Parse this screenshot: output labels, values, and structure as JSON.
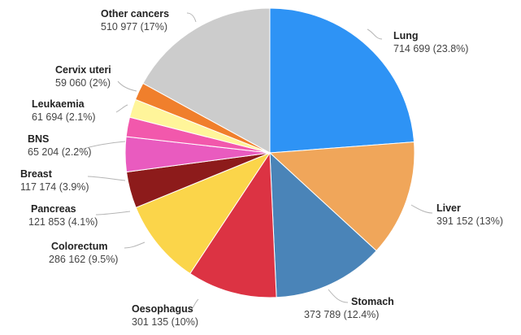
{
  "chart_data": {
    "type": "pie",
    "title": "",
    "slices": [
      {
        "name": "Lung",
        "value": 714699,
        "label": "714 699 (23.8%)",
        "color": "#2e93f5"
      },
      {
        "name": "Liver",
        "value": 391152,
        "label": "391 152 (13%)",
        "color": "#f0a65a"
      },
      {
        "name": "Stomach",
        "value": 373789,
        "label": "373 789 (12.4%)",
        "color": "#4a84b8"
      },
      {
        "name": "Oesophagus",
        "value": 301135,
        "label": "301 135 (10%)",
        "color": "#dc3343"
      },
      {
        "name": "Colorectum",
        "value": 286162,
        "label": "286 162 (9.5%)",
        "color": "#fbd54a"
      },
      {
        "name": "Pancreas",
        "value": 121853,
        "label": "121 853 (4.1%)",
        "color": "#8d1b1b"
      },
      {
        "name": "Breast",
        "value": 117174,
        "label": "117 174 (3.9%)",
        "color": "#e95bbf"
      },
      {
        "name": "BNS",
        "value": 65204,
        "label": "65 204 (2.2%)",
        "color": "#f258ac"
      },
      {
        "name": "Leukaemia",
        "value": 61694,
        "label": "61 694 (2.1%)",
        "color": "#fff59a"
      },
      {
        "name": "Cervix uteri",
        "value": 59060,
        "label": "59 060 (2%)",
        "color": "#f07f2c"
      },
      {
        "name": "Other cancers",
        "value": 510977,
        "label": "510 977 (17%)",
        "color": "#cccccc"
      }
    ]
  }
}
